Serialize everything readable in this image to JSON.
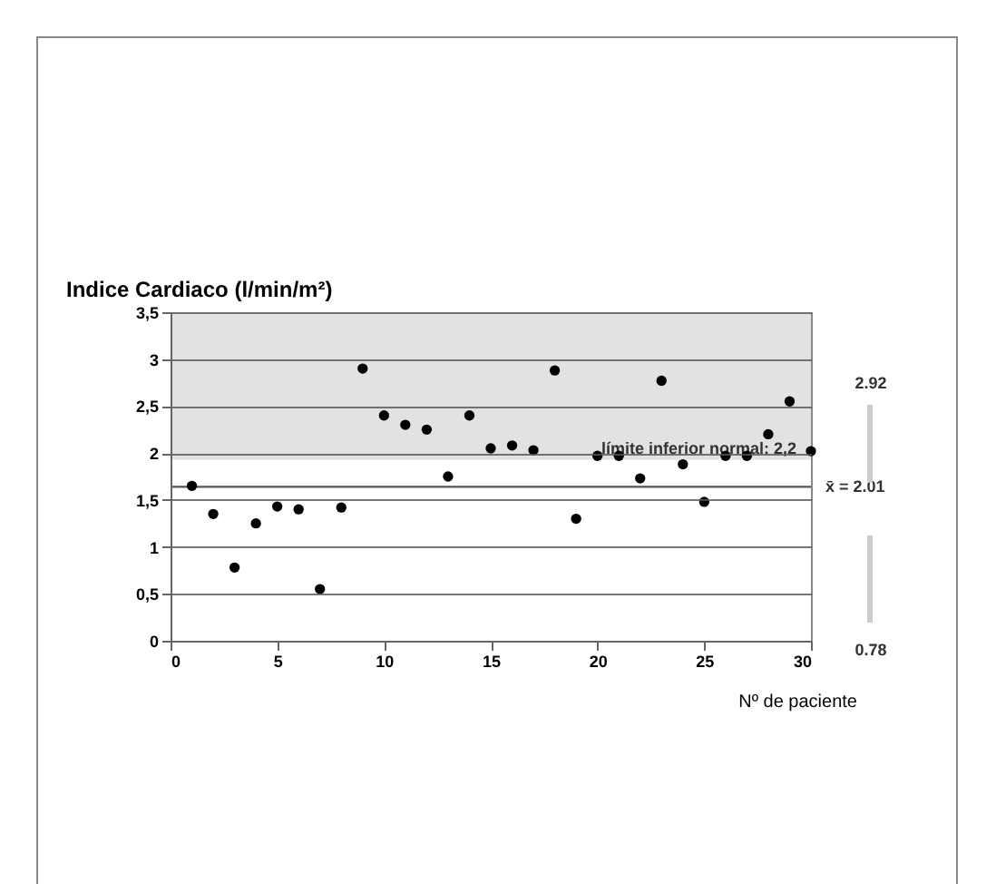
{
  "chart_data": {
    "type": "scatter",
    "ylabel": "Indice Cardiaco (l/min/m²)",
    "xlabel": "Nº de paciente",
    "x": [
      1,
      2,
      3,
      4,
      5,
      6,
      7,
      8,
      9,
      10,
      11,
      12,
      13,
      14,
      15,
      16,
      17,
      18,
      19,
      20,
      21,
      22,
      23,
      24,
      25,
      26,
      27,
      28,
      29,
      30
    ],
    "series": [
      {
        "color": "#000000",
        "values": [
          1.65,
          1.35,
          0.78,
          1.25,
          1.43,
          1.4,
          0.55,
          1.42,
          2.9,
          2.4,
          2.3,
          2.25,
          1.75,
          2.4,
          2.05,
          2.08,
          2.03,
          2.88,
          1.3,
          1.97,
          1.97,
          1.73,
          2.77,
          1.88,
          1.48,
          1.97,
          1.97,
          2.2,
          2.55,
          2.02
        ]
      }
    ],
    "xlim": [
      0,
      30
    ],
    "xticks": [
      0,
      5,
      10,
      15,
      20,
      25,
      30
    ],
    "ylim": [
      0,
      3.5
    ],
    "yticks": [
      {
        "value": 0,
        "label": "0"
      },
      {
        "value": 0.5,
        "label": "0,5"
      },
      {
        "value": 1,
        "label": "1"
      },
      {
        "value": 1.5,
        "label": "1,5"
      },
      {
        "value": 2,
        "label": "2"
      },
      {
        "value": 2.5,
        "label": "2,5"
      },
      {
        "value": 3,
        "label": "3"
      },
      {
        "value": 3.5,
        "label": "3,5"
      }
    ],
    "bands": [
      {
        "axis": "y",
        "from": 1.93,
        "to": 3.5,
        "label": "límite inferior normal: 2,2",
        "color": "#e2e2e2"
      }
    ],
    "ref_lines": [
      {
        "axis": "y",
        "value": 1.64,
        "color": "#555555"
      }
    ],
    "annotations": [
      "2.92",
      "x̄ = 2.01",
      "0.78"
    ],
    "grid": "y",
    "marker": "circle",
    "legend": false
  }
}
